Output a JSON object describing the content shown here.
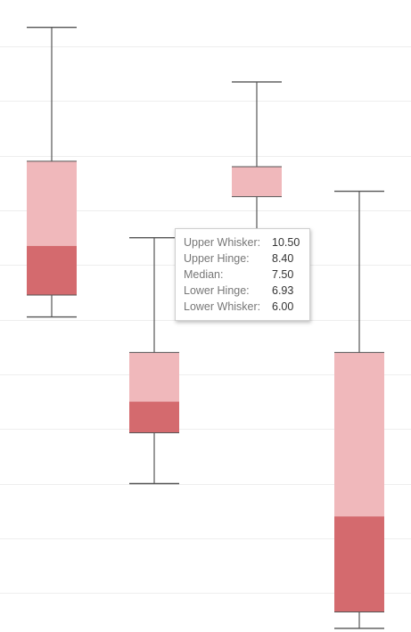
{
  "chart_data": {
    "type": "boxplot",
    "title": "",
    "xlabel": "",
    "ylabel": "",
    "ylim": [
      3.3,
      14.85
    ],
    "grid": true,
    "colors": {
      "upper_box": "#f0b8bb",
      "lower_box": "#d46a6e",
      "whisker": "#555555",
      "grid": "#eeeeee"
    },
    "boxes": [
      {
        "lower_whisker": 9.05,
        "lower_hinge": 9.45,
        "median": 10.35,
        "upper_hinge": 11.9,
        "upper_whisker": 14.35
      },
      {
        "lower_whisker": 6.0,
        "lower_hinge": 6.93,
        "median": 7.5,
        "upper_hinge": 8.4,
        "upper_whisker": 10.5
      },
      {
        "lower_whisker": 9.45,
        "lower_hinge": 11.25,
        "median": 11.25,
        "upper_hinge": 11.8,
        "upper_whisker": 13.35
      },
      {
        "lower_whisker": 3.35,
        "lower_hinge": 3.65,
        "median": 5.4,
        "upper_hinge": 8.4,
        "upper_whisker": 11.35
      }
    ]
  },
  "tooltip": {
    "rows": [
      {
        "label": "Upper Whisker:",
        "value": "10.50"
      },
      {
        "label": "Upper Hinge:",
        "value": "8.40"
      },
      {
        "label": "Median:",
        "value": "7.50"
      },
      {
        "label": "Lower Hinge:",
        "value": "6.93"
      },
      {
        "label": "Lower Whisker:",
        "value": "6.00"
      }
    ]
  }
}
